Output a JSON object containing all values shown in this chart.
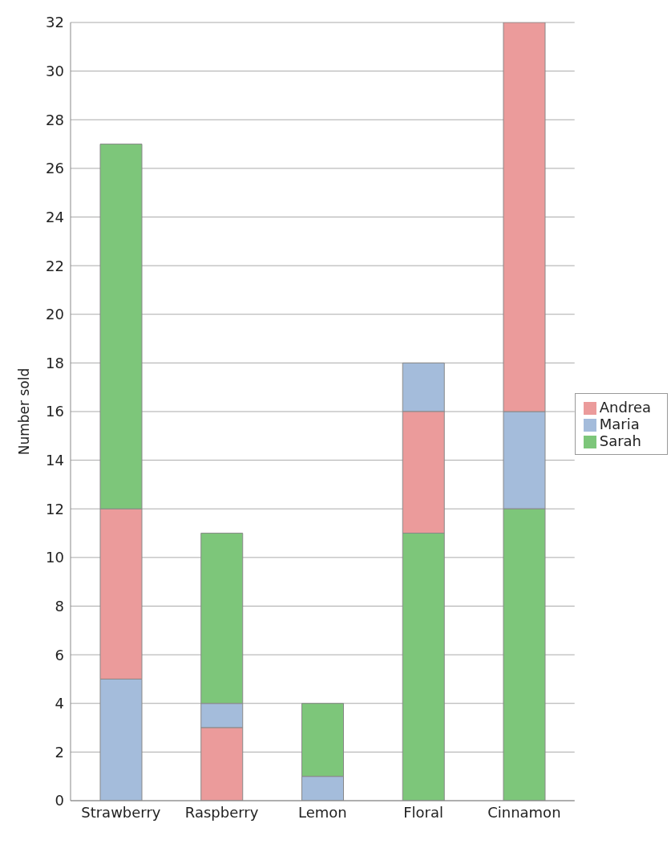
{
  "chart_data": {
    "type": "bar",
    "ylabel": "Number sold",
    "categories": [
      "Strawberry",
      "Raspberry",
      "Lemon",
      "Floral",
      "Cinnamon"
    ],
    "series": [
      {
        "name": "Maria",
        "color": "#a4bcdb",
        "values": [
          5,
          1,
          1,
          2,
          4
        ],
        "base": [
          0,
          3,
          0,
          16,
          12
        ]
      },
      {
        "name": "Andrea",
        "color": "#eb9b9b",
        "values": [
          7,
          3,
          null,
          5,
          16
        ],
        "base": [
          5,
          0,
          null,
          11,
          16
        ]
      },
      {
        "name": "Sarah",
        "color": "#7dc67a",
        "values": [
          15,
          7,
          3,
          11,
          12
        ],
        "base": [
          12,
          4,
          1,
          0,
          0
        ]
      }
    ],
    "ylim": [
      0,
      32
    ],
    "yticks": [
      0,
      2,
      4,
      6,
      8,
      10,
      12,
      14,
      16,
      18,
      20,
      22,
      24,
      26,
      28,
      30,
      32
    ],
    "grid": "y",
    "legend": "right"
  }
}
